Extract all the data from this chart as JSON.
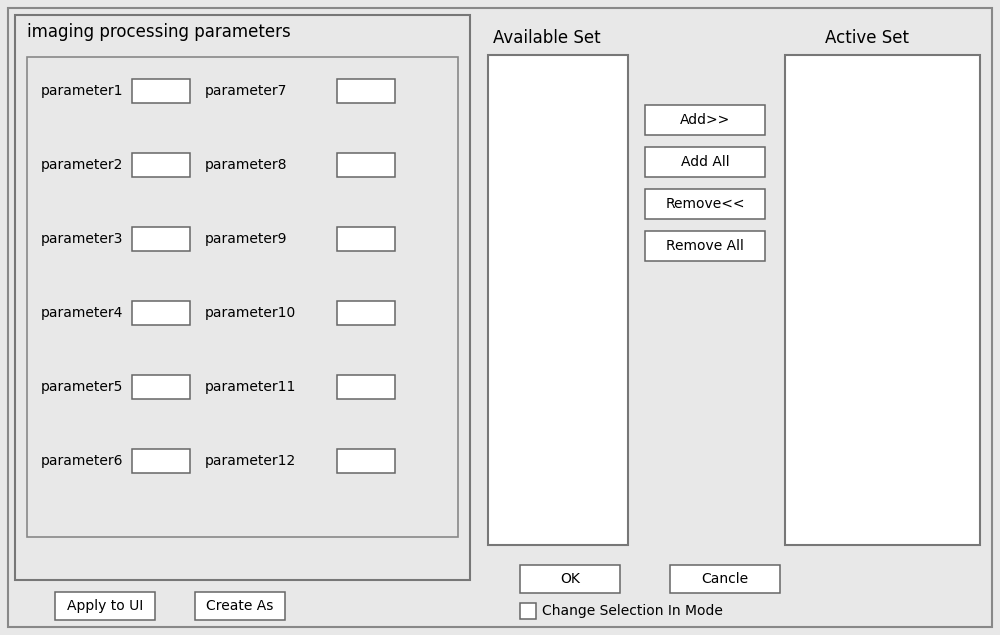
{
  "bg_color": "#e8e8e8",
  "panel_bg": "#e8e8e8",
  "white": "#ffffff",
  "edge_color": "#666666",
  "text_color": "#000000",
  "title_left": "imaging processing parameters",
  "params_left": [
    "parameter1",
    "parameter2",
    "parameter3",
    "parameter4",
    "parameter5",
    "parameter6"
  ],
  "params_right": [
    "parameter7",
    "parameter8",
    "parameter9",
    "parameter10",
    "parameter11",
    "parameter12"
  ],
  "label_available": "Available Set",
  "label_active": "Active Set",
  "buttons_middle": [
    "Add>>",
    "Add All",
    "Remove<<",
    "Remove All"
  ],
  "btn_apply": "Apply to UI",
  "btn_create": "Create As",
  "btn_ok": "OK",
  "btn_cancle": "Cancle",
  "checkbox_label": "Change Selection In Mode",
  "font_size_title": 12,
  "font_size_param": 10,
  "font_size_btn": 10,
  "font_size_label": 12
}
